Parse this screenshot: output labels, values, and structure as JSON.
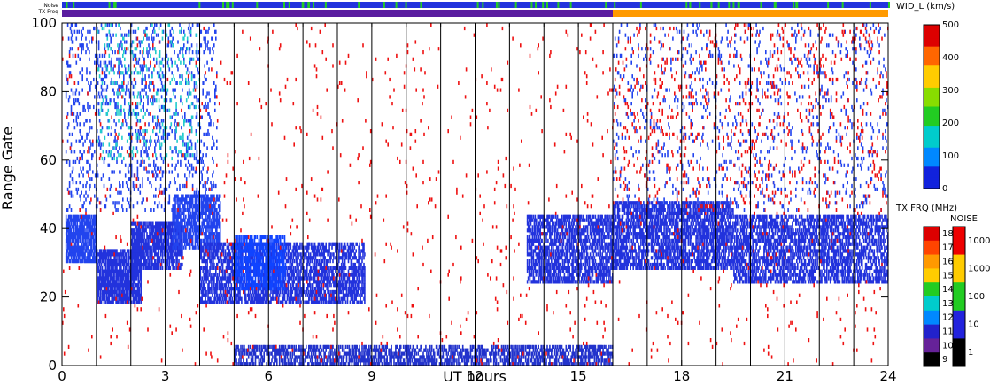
{
  "chart_data": {
    "type": "heatmap",
    "xlabel": "UT hours",
    "ylabel": "Range Gate",
    "xlim": [
      0,
      24
    ],
    "ylim": [
      0,
      100
    ],
    "x_ticks": [
      "0",
      "3",
      "6",
      "9",
      "12",
      "15",
      "18",
      "21",
      "24"
    ],
    "y_ticks": [
      "0",
      "20",
      "40",
      "60",
      "80",
      "100"
    ],
    "grid": "vertical lines every 1 hour",
    "status_bars": {
      "noise_label": "Noise",
      "txfreq_label": "TX Freq",
      "txfreq_segments": [
        {
          "start": 0,
          "end": 16,
          "color": "#5a1ca0"
        },
        {
          "start": 16,
          "end": 24,
          "color": "#ff9a00"
        }
      ],
      "noise_color": "#2233dd",
      "noise_accent": "#22cc22"
    },
    "colorbar_width": {
      "title": "WID_L (km/s)",
      "ticks": [
        "500",
        "400",
        "300",
        "200",
        "100",
        "0"
      ],
      "range": [
        0,
        500
      ]
    },
    "colorbar_txfreq": {
      "title": "TX FRQ (MHz)",
      "ticks": [
        "18",
        "17",
        "16",
        "15",
        "14",
        "13",
        "12",
        "11",
        "10",
        "9"
      ],
      "colors": [
        "#dd0000",
        "#ff4400",
        "#ff9900",
        "#ffcc00",
        "#22cc22",
        "#00cccc",
        "#0088ff",
        "#2222cc",
        "#662299",
        "#000000"
      ]
    },
    "colorbar_noise": {
      "title": "NOISE",
      "ticks": [
        "10000",
        "1000",
        "100",
        "10",
        "1"
      ],
      "colors": [
        "#ee0000",
        "#ffcc00",
        "#22cc22",
        "#2222dd",
        "#000000"
      ]
    },
    "regions": [
      {
        "t0": 0.1,
        "t1": 1.0,
        "g0": 30,
        "g1": 44,
        "density": 0.8,
        "color": "#2244ee"
      },
      {
        "t0": 1.0,
        "t1": 2.3,
        "g0": 18,
        "g1": 34,
        "density": 0.8,
        "color": "#2233dd"
      },
      {
        "t0": 2.0,
        "t1": 3.5,
        "g0": 28,
        "g1": 42,
        "density": 0.75,
        "color": "#2233dd"
      },
      {
        "t0": 3.2,
        "t1": 4.6,
        "g0": 34,
        "g1": 50,
        "density": 0.7,
        "color": "#2244ee"
      },
      {
        "t0": 4.0,
        "t1": 8.8,
        "g0": 18,
        "g1": 36,
        "density": 0.6,
        "color": "#2233dd"
      },
      {
        "t0": 5.0,
        "t1": 6.5,
        "g0": 22,
        "g1": 38,
        "density": 0.6,
        "color": "#1144ff"
      },
      {
        "t0": 5.0,
        "t1": 16.0,
        "g0": 0,
        "g1": 6,
        "density": 0.55,
        "color": "#2233cc"
      },
      {
        "t0": 13.5,
        "t1": 16.0,
        "g0": 24,
        "g1": 44,
        "density": 0.6,
        "color": "#2233dd"
      },
      {
        "t0": 16.0,
        "t1": 19.5,
        "g0": 28,
        "g1": 48,
        "density": 0.65,
        "color": "#2233dd"
      },
      {
        "t0": 19.5,
        "t1": 24.0,
        "g0": 24,
        "g1": 44,
        "density": 0.55,
        "color": "#2233dd"
      },
      {
        "t0": 0.1,
        "t1": 4.5,
        "g0": 45,
        "g1": 100,
        "density": 0.12,
        "color": "#2244ee"
      },
      {
        "t0": 1.0,
        "t1": 4.0,
        "g0": 60,
        "g1": 100,
        "density": 0.06,
        "color": "#22cccc"
      },
      {
        "t0": 0.0,
        "t1": 24.0,
        "g0": 0,
        "g1": 100,
        "density": 0.012,
        "color": "#ee1111"
      },
      {
        "t0": 16.0,
        "t1": 24.0,
        "g0": 45,
        "g1": 100,
        "density": 0.05,
        "color": "#2244ee"
      },
      {
        "t0": 16.0,
        "t1": 24.0,
        "g0": 45,
        "g1": 100,
        "density": 0.03,
        "color": "#ee1111"
      }
    ]
  }
}
